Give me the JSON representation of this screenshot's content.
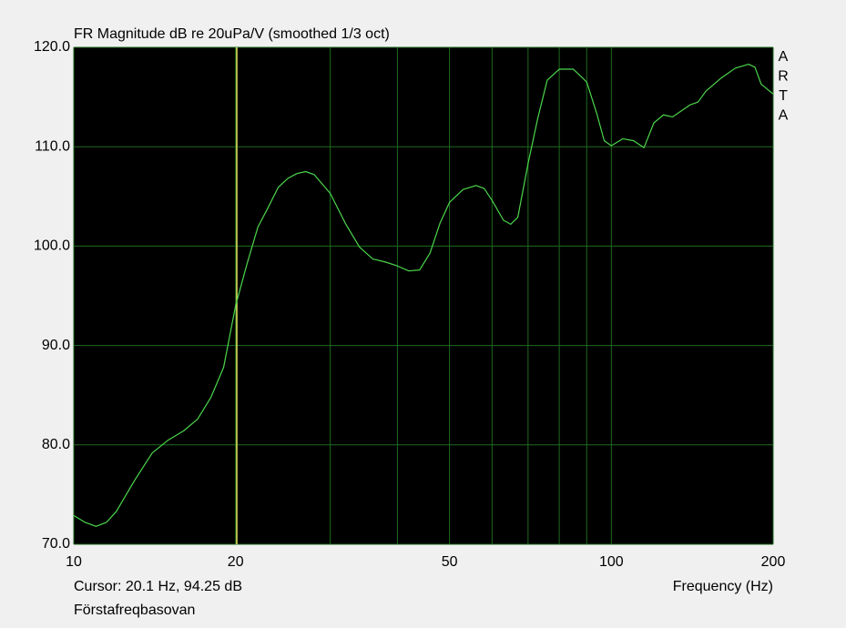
{
  "chart_data": {
    "type": "line",
    "title": "FR Magnitude dB re 20uPa/V (smoothed 1/3 oct)",
    "x_label": "Frequency (Hz)",
    "cursor": {
      "label": "Cursor: 20.1 Hz, 94.25 dB",
      "x": 20.1,
      "color": "#e8f060"
    },
    "footnote": "Förstafreqbasovan",
    "brand": [
      "A",
      "R",
      "T",
      "A"
    ],
    "x_scale": "log",
    "xlim": [
      10,
      200
    ],
    "xticks": [
      10,
      20,
      50,
      100,
      200
    ],
    "minor_xgrid": [
      30,
      40,
      60,
      70,
      80,
      90
    ],
    "ylim": [
      70,
      120
    ],
    "yticks": [
      {
        "value": 70,
        "label": "70.0"
      },
      {
        "value": 80,
        "label": "80.0"
      },
      {
        "value": 90,
        "label": "90.0"
      },
      {
        "value": 100,
        "label": "100.0"
      },
      {
        "value": 110,
        "label": "110.0"
      },
      {
        "value": 120,
        "label": "120.0"
      }
    ],
    "grid": true,
    "background": "#000000",
    "grid_color": "#1f6b1f",
    "x": [
      10,
      10.5,
      11,
      11.5,
      12,
      13,
      14,
      15,
      16,
      17,
      18,
      19,
      20,
      21,
      22,
      23,
      24,
      25,
      26,
      27,
      28,
      30,
      32,
      34,
      36,
      38,
      40,
      42,
      44,
      46,
      48,
      50,
      53,
      56,
      58,
      60,
      63,
      65,
      67,
      70,
      73,
      76,
      80,
      85,
      90,
      94,
      97,
      100,
      105,
      110,
      115,
      120,
      125,
      130,
      140,
      145,
      150,
      160,
      170,
      180,
      185,
      190,
      200
    ],
    "series": [
      {
        "color": "#4cd64c",
        "values": [
          72.9,
          72.2,
          71.8,
          72.2,
          73.3,
          76.5,
          79.2,
          80.5,
          81.4,
          82.6,
          84.8,
          87.8,
          94.0,
          98.2,
          101.9,
          103.9,
          105.9,
          106.8,
          107.3,
          107.5,
          107.2,
          105.3,
          102.3,
          99.9,
          98.7,
          98.4,
          98.0,
          97.5,
          97.6,
          99.3,
          102.3,
          104.4,
          105.7,
          106.1,
          105.8,
          104.6,
          102.6,
          102.2,
          102.9,
          108.3,
          112.9,
          116.7,
          117.8,
          117.8,
          116.5,
          113.3,
          110.6,
          110.1,
          110.8,
          110.6,
          109.9,
          112.4,
          113.2,
          113.0,
          114.2,
          114.5,
          115.6,
          116.9,
          117.9,
          118.3,
          118.0,
          116.3,
          115.3
        ]
      }
    ]
  }
}
